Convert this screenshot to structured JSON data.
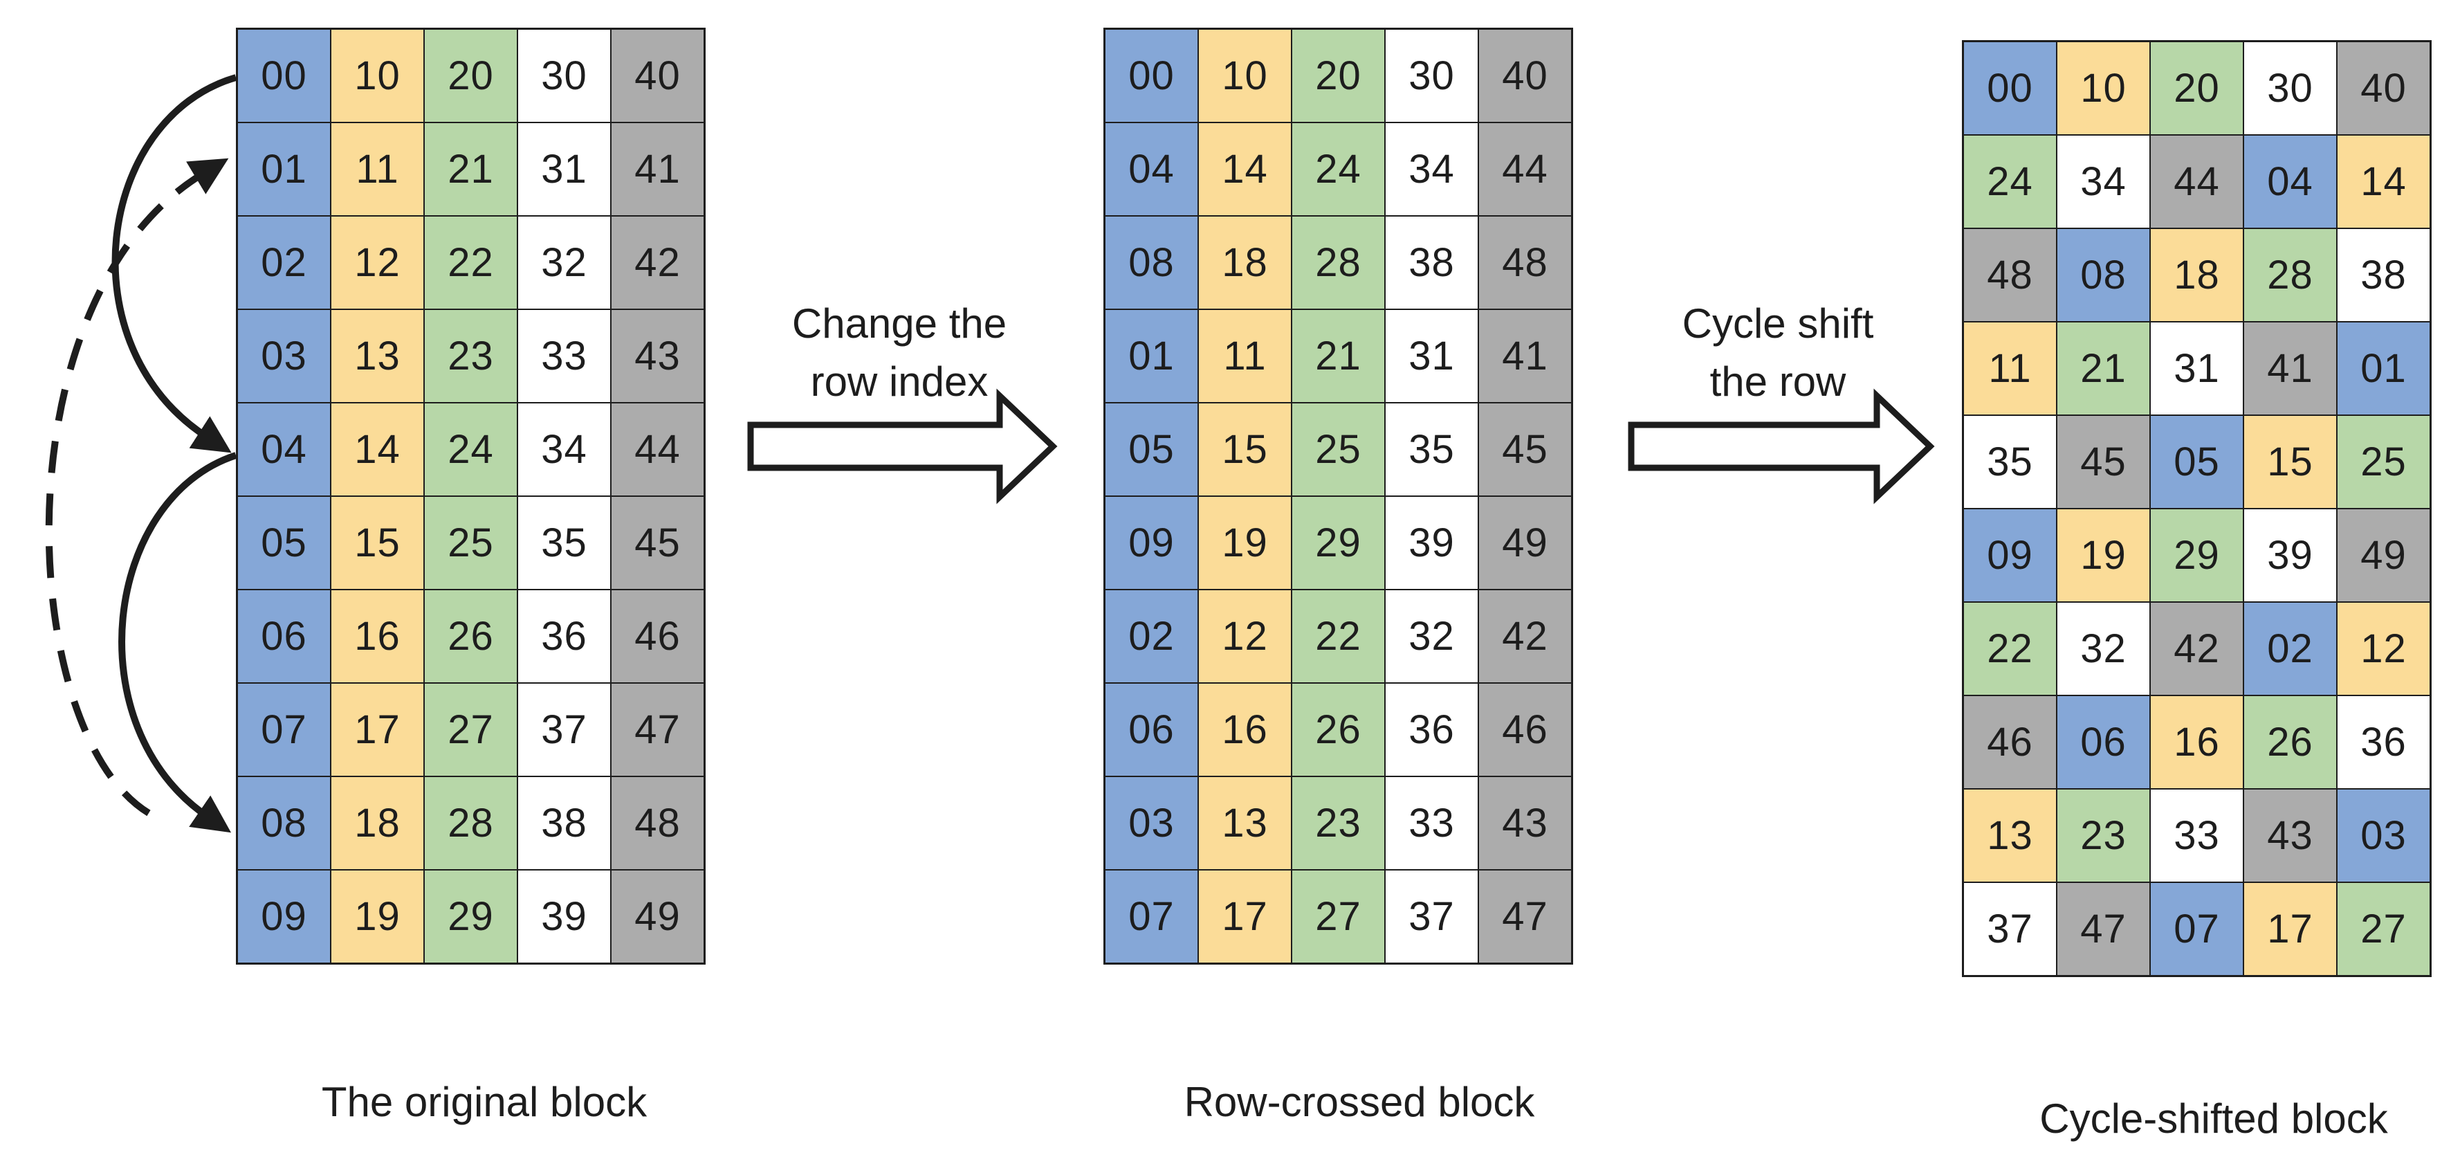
{
  "palette": {
    "blue": "#85A7D7",
    "yellow": "#FBDC98",
    "green": "#B7D7A8",
    "white": "#FFFFFF",
    "gray": "#ACACAC",
    "line": "#1d1d1d",
    "text": "#1d1d1d"
  },
  "column_color_by_first_digit": {
    "0": "blue",
    "1": "yellow",
    "2": "green",
    "3": "white",
    "4": "gray"
  },
  "blocks": [
    {
      "id": "original",
      "caption": "The original block",
      "rows": [
        [
          "00",
          "10",
          "20",
          "30",
          "40"
        ],
        [
          "01",
          "11",
          "21",
          "31",
          "41"
        ],
        [
          "02",
          "12",
          "22",
          "32",
          "42"
        ],
        [
          "03",
          "13",
          "23",
          "33",
          "43"
        ],
        [
          "04",
          "14",
          "24",
          "34",
          "44"
        ],
        [
          "05",
          "15",
          "25",
          "35",
          "45"
        ],
        [
          "06",
          "16",
          "26",
          "36",
          "46"
        ],
        [
          "07",
          "17",
          "27",
          "37",
          "47"
        ],
        [
          "08",
          "18",
          "28",
          "38",
          "48"
        ],
        [
          "09",
          "19",
          "29",
          "39",
          "49"
        ]
      ]
    },
    {
      "id": "row_crossed",
      "caption": "Row-crossed block",
      "rows": [
        [
          "00",
          "10",
          "20",
          "30",
          "40"
        ],
        [
          "04",
          "14",
          "24",
          "34",
          "44"
        ],
        [
          "08",
          "18",
          "28",
          "38",
          "48"
        ],
        [
          "01",
          "11",
          "21",
          "31",
          "41"
        ],
        [
          "05",
          "15",
          "25",
          "35",
          "45"
        ],
        [
          "09",
          "19",
          "29",
          "39",
          "49"
        ],
        [
          "02",
          "12",
          "22",
          "32",
          "42"
        ],
        [
          "06",
          "16",
          "26",
          "36",
          "46"
        ],
        [
          "03",
          "13",
          "23",
          "33",
          "43"
        ],
        [
          "07",
          "17",
          "27",
          "37",
          "47"
        ]
      ]
    },
    {
      "id": "cycle_shifted",
      "caption": "Cycle-shifted block",
      "rows": [
        [
          "00",
          "10",
          "20",
          "30",
          "40"
        ],
        [
          "24",
          "34",
          "44",
          "04",
          "14"
        ],
        [
          "48",
          "08",
          "18",
          "28",
          "38"
        ],
        [
          "11",
          "21",
          "31",
          "41",
          "01"
        ],
        [
          "35",
          "45",
          "05",
          "15",
          "25"
        ],
        [
          "09",
          "19",
          "29",
          "39",
          "49"
        ],
        [
          "22",
          "32",
          "42",
          "02",
          "12"
        ],
        [
          "46",
          "06",
          "16",
          "26",
          "36"
        ],
        [
          "13",
          "23",
          "33",
          "43",
          "03"
        ],
        [
          "37",
          "47",
          "07",
          "17",
          "27"
        ]
      ]
    }
  ],
  "transforms": [
    {
      "label_lines": [
        "Change the",
        "row index"
      ]
    },
    {
      "label_lines": [
        "Cycle shift",
        "the row"
      ]
    }
  ],
  "left_arrows": {
    "solid": [
      {
        "from_row": "00",
        "to_row": "04"
      },
      {
        "from_row": "04",
        "to_row": "08"
      }
    ],
    "dashed": [
      {
        "from_row": "08",
        "to_row": "01"
      }
    ]
  }
}
